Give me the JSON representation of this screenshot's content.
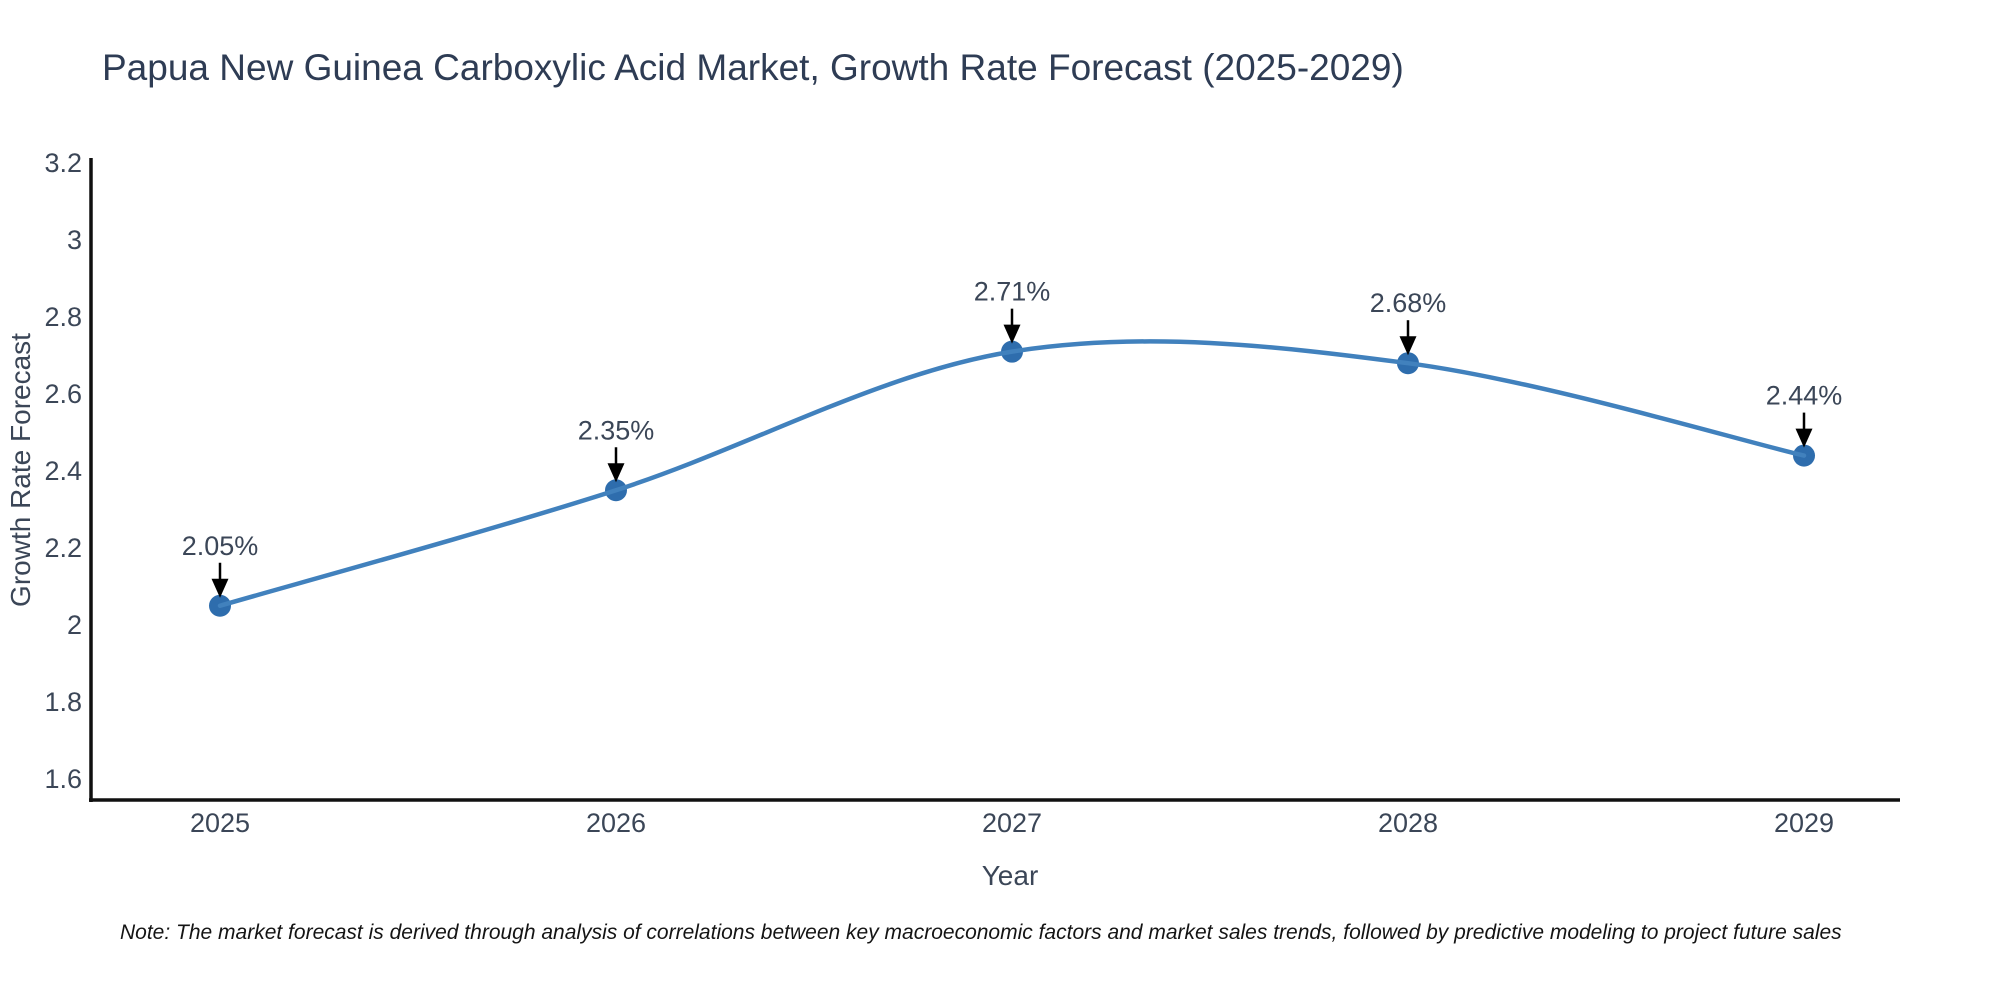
{
  "note": "Note: The market forecast is derived through analysis of correlations between key macroeconomic factors and market sales trends, followed by predictive modeling to project future sales",
  "chart_data": {
    "type": "line",
    "title": "Papua New Guinea Carboxylic Acid Market, Growth Rate Forecast (2025-2029)",
    "xlabel": "Year",
    "ylabel": "Growth Rate Forecast",
    "x": [
      2025,
      2026,
      2027,
      2028,
      2029
    ],
    "series": [
      {
        "name": "Growth Rate Forecast",
        "values": [
          2.05,
          2.35,
          2.71,
          2.68,
          2.44
        ]
      }
    ],
    "point_labels": [
      "2.05%",
      "2.35%",
      "2.71%",
      "2.68%",
      "2.44%"
    ],
    "yticks": [
      1.6,
      1.8,
      2,
      2.2,
      2.4,
      2.6,
      2.8,
      3,
      3.2
    ],
    "ylim": [
      1.55,
      3.21
    ],
    "xlim": [
      2024.67,
      2029.24
    ],
    "grid": false,
    "legend_position": "none",
    "line_shape": "spline",
    "marker": "circle",
    "annotations": "value labels with downward arrows above each point",
    "style": {
      "line_color": "#4181bd",
      "marker_color": "#2e6dad",
      "axis_color": "#101010",
      "tick_color": "#3b4657",
      "annotation_color": "#3b4657",
      "arrow_color": "#000000",
      "title_color": "#2e3c54",
      "note_color": "#141414",
      "background": "#ffffff"
    }
  }
}
